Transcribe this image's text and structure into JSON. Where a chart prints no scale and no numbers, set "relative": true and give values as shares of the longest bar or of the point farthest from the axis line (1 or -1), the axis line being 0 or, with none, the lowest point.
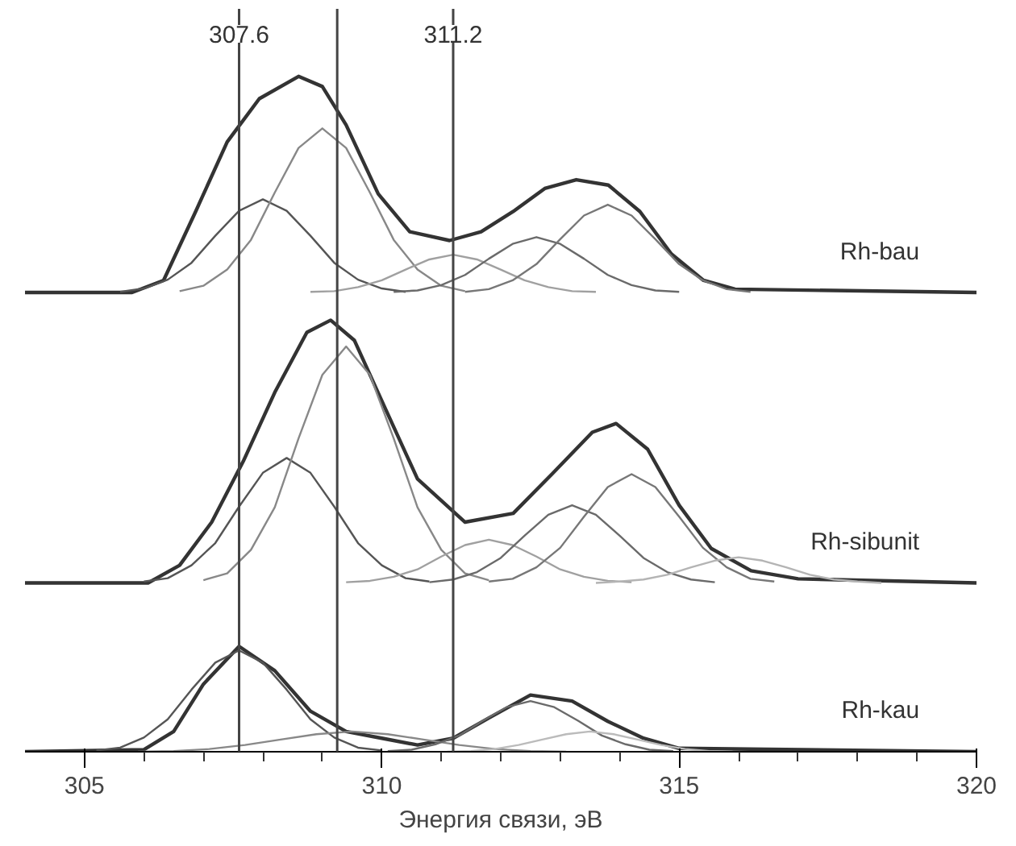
{
  "chart_data": {
    "type": "line",
    "relative": true,
    "xlabel": "Энергия связи, эВ",
    "xlim": [
      304,
      320
    ],
    "xticks": [
      305,
      {
        "value": 306,
        "label": null
      },
      {
        "value": 307,
        "label": null
      },
      {
        "value": 308,
        "label": null
      },
      {
        "value": 309,
        "label": null
      },
      310,
      {
        "value": 311,
        "label": null
      },
      {
        "value": 312,
        "label": null
      },
      {
        "value": 313,
        "label": null
      },
      {
        "value": 314,
        "label": null
      },
      315,
      {
        "value": 316,
        "label": null
      },
      {
        "value": 317,
        "label": null
      },
      {
        "value": 318,
        "label": null
      },
      {
        "value": 319,
        "label": null
      },
      320
    ],
    "tick_labels": "x",
    "grid": false,
    "marker": "none",
    "line_style": "solid",
    "ref_lines": [
      {
        "axis": "x",
        "value": 307.6,
        "label": "307.6",
        "color": "#444444"
      },
      {
        "axis": "x",
        "value": 309.25,
        "label": null,
        "color": "#444444"
      },
      {
        "axis": "x",
        "value": 311.2,
        "label": "311.2",
        "color": "#444444"
      }
    ],
    "series": [
      {
        "name": "Rh-bau",
        "color": "#333333",
        "x": [
          304.0,
          305.8,
          306.33,
          306.87,
          307.4,
          307.94,
          308.6,
          309.0,
          309.4,
          309.94,
          310.47,
          311.14,
          311.67,
          312.21,
          312.74,
          313.27,
          313.81,
          314.34,
          314.87,
          315.41,
          315.94,
          320.0
        ],
        "values": [
          0.68,
          0.68,
          0.698,
          0.8,
          0.903,
          0.967,
          1.0,
          0.985,
          0.928,
          0.826,
          0.77,
          0.757,
          0.77,
          0.8,
          0.834,
          0.847,
          0.839,
          0.8,
          0.737,
          0.698,
          0.685,
          0.68
        ]
      },
      {
        "color": "#555555",
        "x": [
          305.6,
          306.0,
          306.4,
          306.8,
          307.2,
          307.6,
          308.0,
          308.4,
          308.8,
          309.2,
          309.6,
          310.0,
          310.4
        ],
        "values": [
          0.681,
          0.686,
          0.699,
          0.724,
          0.764,
          0.801,
          0.818,
          0.801,
          0.764,
          0.724,
          0.699,
          0.686,
          0.681
        ]
      },
      {
        "color": "#888888",
        "x": [
          306.6,
          307.0,
          307.4,
          307.8,
          308.2,
          308.6,
          309.0,
          309.4,
          309.8,
          310.2,
          310.6,
          311.0,
          311.4
        ],
        "values": [
          0.682,
          0.69,
          0.714,
          0.758,
          0.828,
          0.894,
          0.923,
          0.894,
          0.828,
          0.758,
          0.714,
          0.69,
          0.682
        ]
      },
      {
        "color": "#a0a0a0",
        "x": [
          308.8,
          309.2,
          309.6,
          310.0,
          310.4,
          310.8,
          311.2,
          311.6,
          312.0,
          312.4,
          312.8,
          313.2,
          313.6
        ],
        "values": [
          0.681,
          0.682,
          0.688,
          0.698,
          0.714,
          0.729,
          0.736,
          0.729,
          0.714,
          0.698,
          0.688,
          0.682,
          0.681
        ]
      },
      {
        "color": "#6a6a6a",
        "x": [
          310.2,
          310.6,
          311.0,
          311.4,
          311.8,
          312.2,
          312.6,
          313.0,
          313.4,
          313.8,
          314.2,
          314.6,
          315.0
        ],
        "values": [
          0.681,
          0.683,
          0.691,
          0.706,
          0.73,
          0.752,
          0.762,
          0.752,
          0.73,
          0.706,
          0.691,
          0.683,
          0.681
        ]
      },
      {
        "color": "#777777",
        "x": [
          311.4,
          311.8,
          312.2,
          312.6,
          313.0,
          313.4,
          313.8,
          314.2,
          314.6,
          315.0,
          315.4,
          315.8,
          316.2
        ],
        "values": [
          0.681,
          0.685,
          0.698,
          0.722,
          0.759,
          0.794,
          0.81,
          0.794,
          0.759,
          0.722,
          0.698,
          0.685,
          0.681
        ]
      },
      {
        "name": "Rh-sibunit",
        "color": "#333333",
        "x": [
          304.0,
          306.07,
          306.6,
          307.14,
          307.67,
          308.2,
          308.74,
          309.14,
          309.54,
          310.07,
          310.6,
          311.4,
          312.21,
          312.87,
          313.54,
          313.94,
          314.47,
          315.0,
          315.54,
          316.21,
          317.0,
          320.0
        ],
        "values": [
          0.25,
          0.25,
          0.276,
          0.34,
          0.43,
          0.532,
          0.621,
          0.639,
          0.609,
          0.506,
          0.404,
          0.34,
          0.353,
          0.412,
          0.473,
          0.486,
          0.448,
          0.365,
          0.301,
          0.268,
          0.256,
          0.25
        ]
      },
      {
        "color": "#555555",
        "x": [
          306.0,
          306.4,
          306.8,
          307.2,
          307.6,
          308.0,
          308.4,
          308.8,
          309.2,
          309.6,
          310.0,
          310.4,
          310.8
        ],
        "values": [
          0.252,
          0.257,
          0.276,
          0.309,
          0.363,
          0.413,
          0.435,
          0.413,
          0.363,
          0.309,
          0.276,
          0.257,
          0.252
        ]
      },
      {
        "color": "#888888",
        "x": [
          307.0,
          307.4,
          307.8,
          308.2,
          308.6,
          309.0,
          309.4,
          309.8,
          310.2,
          310.6,
          311.0,
          311.4,
          311.8
        ],
        "values": [
          0.254,
          0.264,
          0.299,
          0.362,
          0.464,
          0.558,
          0.6,
          0.558,
          0.464,
          0.362,
          0.299,
          0.264,
          0.254
        ]
      },
      {
        "color": "#a0a0a0",
        "x": [
          309.4,
          309.8,
          310.2,
          310.6,
          311.0,
          311.4,
          311.8,
          312.2,
          312.6,
          313.0,
          313.4,
          313.8,
          314.2
        ],
        "values": [
          0.251,
          0.253,
          0.259,
          0.27,
          0.289,
          0.306,
          0.314,
          0.306,
          0.289,
          0.27,
          0.259,
          0.253,
          0.251
        ]
      },
      {
        "color": "#6a6a6a",
        "x": [
          310.8,
          311.2,
          311.6,
          312.0,
          312.4,
          312.8,
          313.2,
          313.6,
          314.0,
          314.4,
          314.8,
          315.2,
          315.6
        ],
        "values": [
          0.251,
          0.255,
          0.266,
          0.287,
          0.32,
          0.351,
          0.365,
          0.351,
          0.32,
          0.287,
          0.266,
          0.255,
          0.251
        ]
      },
      {
        "color": "#777777",
        "x": [
          311.8,
          312.2,
          312.6,
          313.0,
          313.4,
          313.8,
          314.2,
          314.6,
          315.0,
          315.4,
          315.8,
          316.2,
          316.6
        ],
        "values": [
          0.252,
          0.256,
          0.273,
          0.302,
          0.348,
          0.392,
          0.411,
          0.392,
          0.348,
          0.302,
          0.273,
          0.256,
          0.252
        ]
      },
      {
        "color": "#b4b4b4",
        "x": [
          313.6,
          314.0,
          314.4,
          314.8,
          315.2,
          315.6,
          316.0,
          316.4,
          316.8,
          317.2,
          317.6,
          318.0,
          318.4
        ],
        "values": [
          0.25,
          0.252,
          0.255,
          0.262,
          0.273,
          0.283,
          0.288,
          0.283,
          0.273,
          0.262,
          0.255,
          0.252,
          0.25
        ]
      },
      {
        "name": "Rh-kau",
        "color": "#333333",
        "x": [
          304.0,
          306.0,
          306.5,
          307.0,
          307.6,
          308.2,
          308.8,
          309.4,
          310.0,
          310.6,
          311.2,
          311.8,
          312.5,
          313.2,
          313.8,
          314.4,
          315.0,
          320.0
        ],
        "values": [
          0.0,
          0.003,
          0.03,
          0.1,
          0.156,
          0.12,
          0.06,
          0.03,
          0.02,
          0.01,
          0.02,
          0.05,
          0.084,
          0.075,
          0.045,
          0.02,
          0.005,
          0.0
        ]
      },
      {
        "color": "#555555",
        "x": [
          305.2,
          305.6,
          306.0,
          306.4,
          306.8,
          307.2,
          307.6,
          308.0,
          308.4,
          308.8,
          309.2,
          309.6,
          310.0
        ],
        "values": [
          0.002,
          0.006,
          0.021,
          0.048,
          0.092,
          0.132,
          0.15,
          0.132,
          0.092,
          0.048,
          0.021,
          0.006,
          0.002
        ]
      },
      {
        "color": "#888888",
        "x": [
          305.9,
          306.5,
          307.1,
          307.7,
          308.3,
          308.9,
          309.5,
          310.1,
          310.7,
          311.3,
          311.9,
          312.5,
          313.1
        ],
        "values": [
          0.0,
          0.001,
          0.004,
          0.01,
          0.018,
          0.026,
          0.03,
          0.026,
          0.018,
          0.01,
          0.004,
          0.001,
          0.0
        ]
      },
      {
        "color": "#6a6a6a",
        "x": [
          310.1,
          310.5,
          310.9,
          311.3,
          311.7,
          312.1,
          312.5,
          312.9,
          313.3,
          313.7,
          314.1,
          314.5,
          314.9
        ],
        "values": [
          0.001,
          0.003,
          0.011,
          0.024,
          0.046,
          0.066,
          0.075,
          0.066,
          0.046,
          0.024,
          0.011,
          0.003,
          0.001
        ]
      },
      {
        "color": "#bbbbbb",
        "x": [
          311.1,
          311.5,
          311.9,
          312.3,
          312.7,
          313.1,
          313.5,
          313.9,
          314.3,
          314.7,
          315.1,
          315.5,
          315.9
        ],
        "values": [
          0.0,
          0.001,
          0.004,
          0.01,
          0.018,
          0.026,
          0.03,
          0.026,
          0.018,
          0.01,
          0.004,
          0.001,
          0.0
        ]
      }
    ]
  }
}
